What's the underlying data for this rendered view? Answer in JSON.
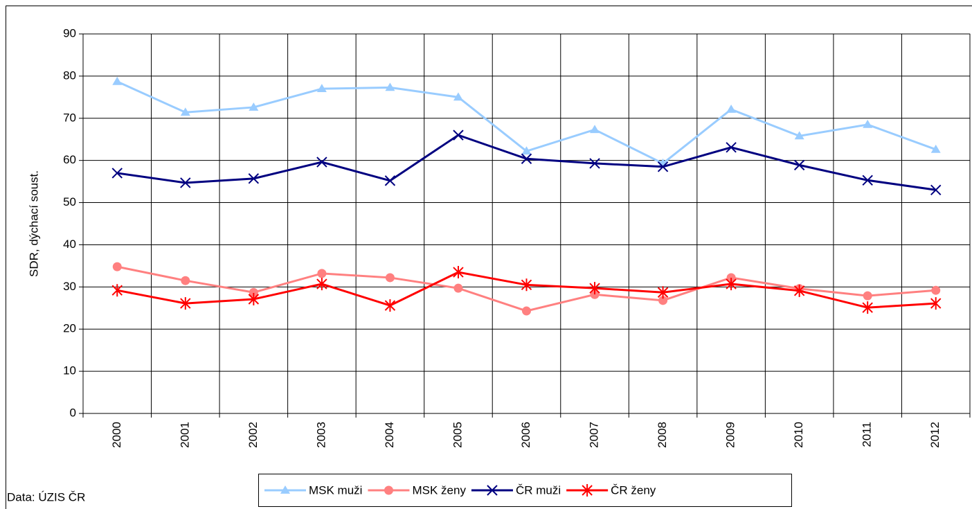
{
  "chart_data": {
    "type": "line",
    "ylabel": "SDR, dýchací soust.",
    "source": "Data: ÚZIS ČR",
    "categories": [
      "2000",
      "2001",
      "2002",
      "2003",
      "2004",
      "2005",
      "2006",
      "2007",
      "2008",
      "2009",
      "2010",
      "2011",
      "2012"
    ],
    "series": [
      {
        "name": "MSK muži",
        "color": "#99ccff",
        "marker": "triangle",
        "values": [
          78.7,
          71.4,
          72.6,
          77.0,
          77.3,
          75.0,
          62.2,
          67.3,
          59.3,
          72.1,
          65.8,
          68.5,
          62.6
        ]
      },
      {
        "name": "MSK ženy",
        "color": "#ff8080",
        "marker": "circle",
        "values": [
          34.8,
          31.5,
          28.7,
          33.2,
          32.2,
          29.7,
          24.3,
          28.2,
          26.8,
          32.2,
          29.6,
          27.9,
          29.2
        ]
      },
      {
        "name": "ČR muži",
        "color": "#000080",
        "marker": "x",
        "values": [
          57.0,
          54.7,
          55.7,
          59.6,
          55.2,
          66.0,
          60.4,
          59.3,
          58.5,
          63.1,
          58.9,
          55.3,
          53.0
        ]
      },
      {
        "name": "ČR ženy",
        "color": "#ff0000",
        "marker": "star",
        "values": [
          29.2,
          26.1,
          27.1,
          30.7,
          25.6,
          33.5,
          30.5,
          29.7,
          28.7,
          30.7,
          29.1,
          25.1,
          26.1
        ]
      }
    ],
    "ylim": [
      0,
      90
    ],
    "yticks": [
      0,
      10,
      20,
      30,
      40,
      50,
      60,
      70,
      80,
      90
    ],
    "grid": true
  }
}
